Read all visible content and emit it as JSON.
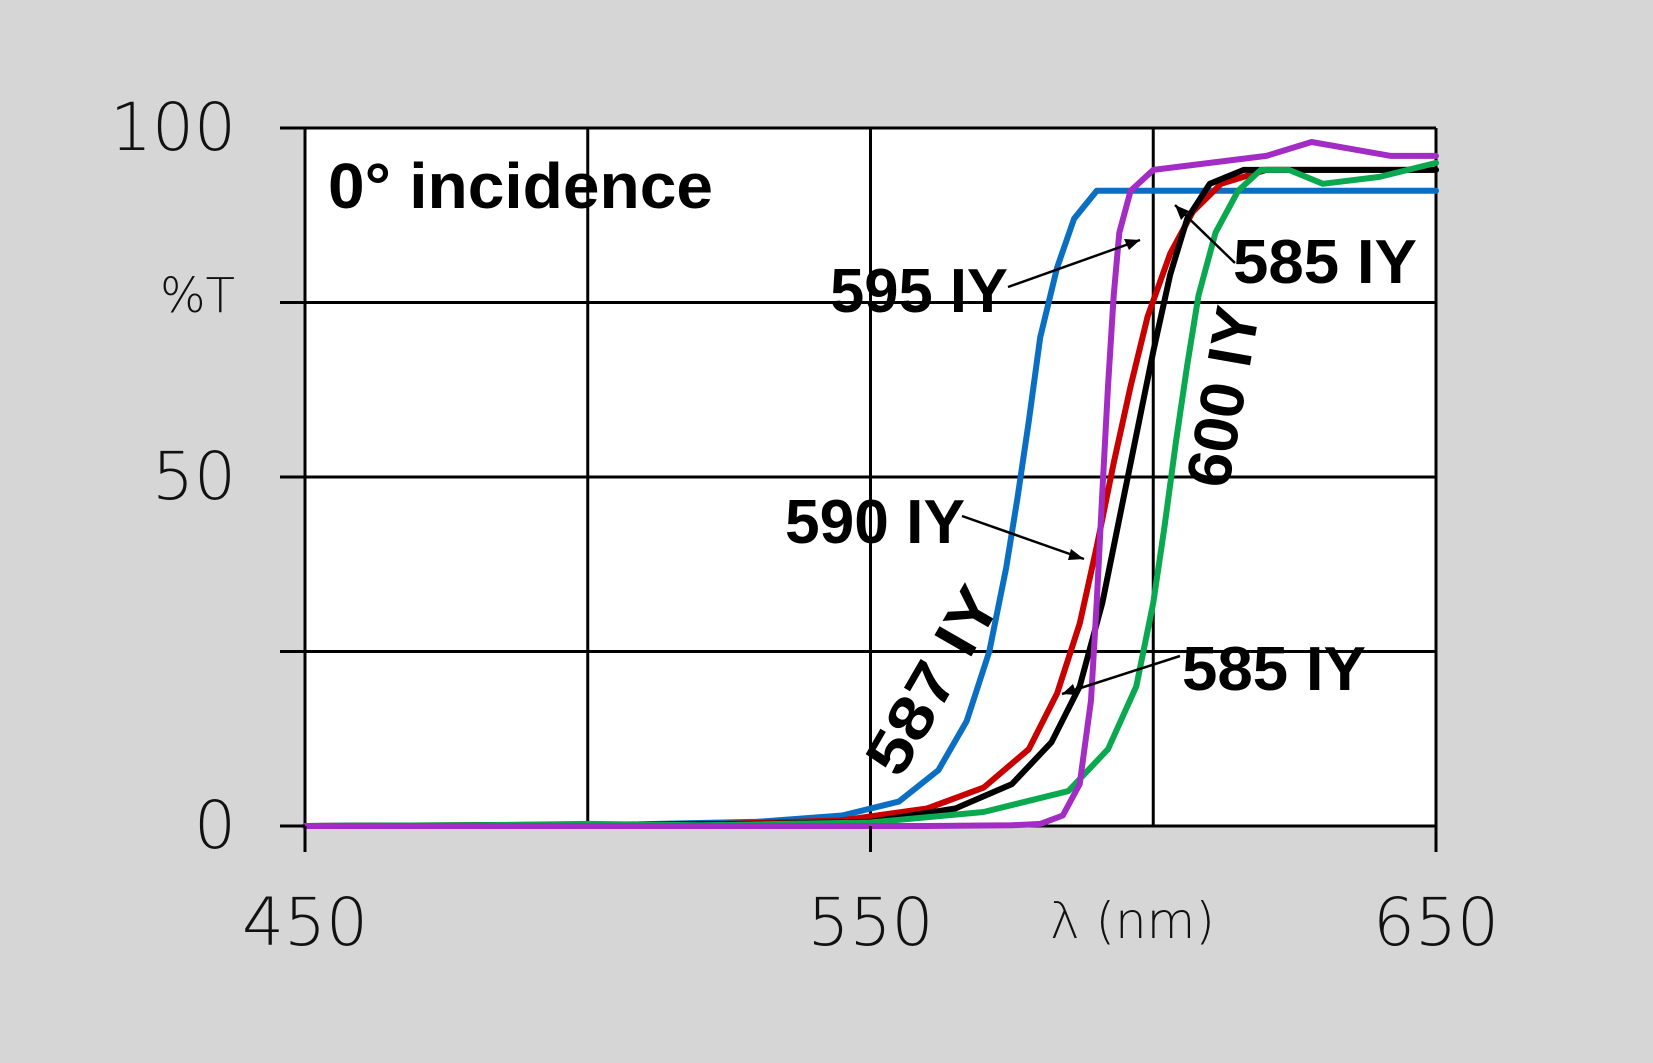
{
  "chart_data": {
    "type": "line",
    "title": "0° incidence",
    "xlabel": "λ (nm)",
    "ylabel": "%T",
    "xlim": [
      450,
      650
    ],
    "ylim": [
      0,
      100
    ],
    "x_ticks": [
      450,
      550,
      650
    ],
    "x_tick_labels": [
      "450",
      "550",
      "650"
    ],
    "y_ticks": [
      0,
      50,
      100
    ],
    "y_tick_labels": [
      "0",
      "50",
      "100"
    ],
    "x_grid": [
      450,
      500,
      550,
      600,
      650
    ],
    "y_grid": [
      0,
      25,
      50,
      75,
      100
    ],
    "grid": true,
    "series": [
      {
        "name": "587 IY",
        "color": "#0a6fc2",
        "points": [
          [
            450,
            0
          ],
          [
            500,
            0.1
          ],
          [
            530,
            0.6
          ],
          [
            545,
            1.5
          ],
          [
            555,
            3.5
          ],
          [
            562,
            8
          ],
          [
            567,
            15
          ],
          [
            571,
            25
          ],
          [
            574,
            37
          ],
          [
            576,
            47
          ],
          [
            578,
            58
          ],
          [
            580,
            70
          ],
          [
            583,
            80
          ],
          [
            586,
            87
          ],
          [
            590,
            91
          ],
          [
            596,
            91
          ],
          [
            600,
            91
          ],
          [
            620,
            91
          ],
          [
            650,
            91
          ]
        ]
      },
      {
        "name": "590 IY",
        "color": "#c80000",
        "points": [
          [
            450,
            0
          ],
          [
            520,
            0.2
          ],
          [
            545,
            0.8
          ],
          [
            560,
            2.5
          ],
          [
            570,
            5.5
          ],
          [
            578,
            11
          ],
          [
            583,
            19
          ],
          [
            587,
            29
          ],
          [
            590,
            40
          ],
          [
            593,
            52
          ],
          [
            596,
            63
          ],
          [
            599,
            73
          ],
          [
            603,
            82
          ],
          [
            607,
            88
          ],
          [
            612,
            92
          ],
          [
            620,
            94
          ],
          [
            650,
            94
          ]
        ]
      },
      {
        "name": "585 IY",
        "color": "#000000",
        "points": [
          [
            450,
            0
          ],
          [
            530,
            0.3
          ],
          [
            550,
            0.6
          ],
          [
            565,
            2.5
          ],
          [
            575,
            6
          ],
          [
            582,
            12
          ],
          [
            587,
            20
          ],
          [
            591,
            32
          ],
          [
            594,
            44
          ],
          [
            597,
            56
          ],
          [
            600,
            68
          ],
          [
            603,
            79
          ],
          [
            606,
            87
          ],
          [
            610,
            92
          ],
          [
            616,
            94
          ],
          [
            650,
            94
          ]
        ]
      },
      {
        "name": "600 IY",
        "color": "#0aa84f",
        "points": [
          [
            450,
            0
          ],
          [
            480,
            0.1
          ],
          [
            500,
            0.3
          ],
          [
            520,
            0.1
          ],
          [
            550,
            0.5
          ],
          [
            570,
            2
          ],
          [
            585,
            5
          ],
          [
            592,
            11
          ],
          [
            597,
            20
          ],
          [
            600,
            32
          ],
          [
            602,
            43
          ],
          [
            604,
            55
          ],
          [
            606,
            66
          ],
          [
            608,
            76
          ],
          [
            611,
            85
          ],
          [
            615,
            91
          ],
          [
            619,
            94
          ],
          [
            624,
            94
          ],
          [
            630,
            92
          ],
          [
            640,
            93
          ],
          [
            650,
            95
          ]
        ]
      },
      {
        "name": "595 IY",
        "color": "#a32cc4",
        "points": [
          [
            450,
            0
          ],
          [
            560,
            0
          ],
          [
            575,
            0.1
          ],
          [
            580,
            0.3
          ],
          [
            584,
            1.5
          ],
          [
            587,
            6
          ],
          [
            589,
            18
          ],
          [
            590,
            32
          ],
          [
            591,
            48
          ],
          [
            592,
            63
          ],
          [
            593,
            76
          ],
          [
            594,
            85
          ],
          [
            596,
            91
          ],
          [
            600,
            94
          ],
          [
            610,
            95
          ],
          [
            620,
            96
          ],
          [
            628,
            98
          ],
          [
            635,
            97
          ],
          [
            642,
            96
          ],
          [
            650,
            96
          ]
        ]
      }
    ],
    "annotations": [
      "595 IY",
      "585 IY",
      "600 IY",
      "590 IY",
      "587 IY",
      "585 IY"
    ]
  }
}
